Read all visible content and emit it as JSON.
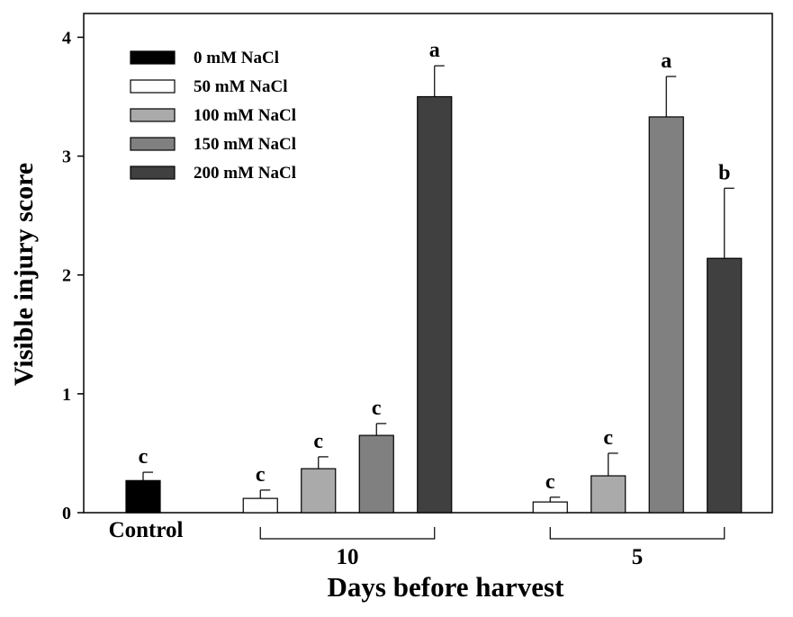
{
  "chart_data": {
    "type": "bar",
    "xlabel": "Days before harvest",
    "ylabel": "Visible injury score",
    "ylim": [
      0,
      4.2
    ],
    "yticks": [
      0,
      1,
      2,
      3,
      4
    ],
    "grid": false,
    "legend_position": "top-left",
    "groups": [
      {
        "label": "Control",
        "bars": [
          {
            "series": "0 mM NaCl",
            "value": 0.27,
            "error": 0.07,
            "letter": "c"
          }
        ]
      },
      {
        "label": "10",
        "bars": [
          {
            "series": "50 mM NaCl",
            "value": 0.12,
            "error": 0.07,
            "letter": "c"
          },
          {
            "series": "100 mM NaCl",
            "value": 0.37,
            "error": 0.1,
            "letter": "c"
          },
          {
            "series": "150 mM NaCl",
            "value": 0.65,
            "error": 0.1,
            "letter": "c"
          },
          {
            "series": "200 mM NaCl",
            "value": 3.5,
            "error": 0.26,
            "letter": "a"
          }
        ]
      },
      {
        "label": "5",
        "bars": [
          {
            "series": "50 mM NaCl",
            "value": 0.09,
            "error": 0.04,
            "letter": "c"
          },
          {
            "series": "100 mM NaCl",
            "value": 0.31,
            "error": 0.19,
            "letter": "c"
          },
          {
            "series": "150 mM NaCl",
            "value": 3.33,
            "error": 0.34,
            "letter": "a"
          },
          {
            "series": "200 mM NaCl",
            "value": 2.14,
            "error": 0.59,
            "letter": "b"
          }
        ]
      }
    ],
    "series": [
      {
        "name": "0 mM NaCl",
        "color": "#000000"
      },
      {
        "name": "50 mM NaCl",
        "color": "#ffffff"
      },
      {
        "name": "100 mM NaCl",
        "color": "#aaaaaa"
      },
      {
        "name": "150 mM NaCl",
        "color": "#808080"
      },
      {
        "name": "200 mM NaCl",
        "color": "#404040"
      }
    ]
  }
}
